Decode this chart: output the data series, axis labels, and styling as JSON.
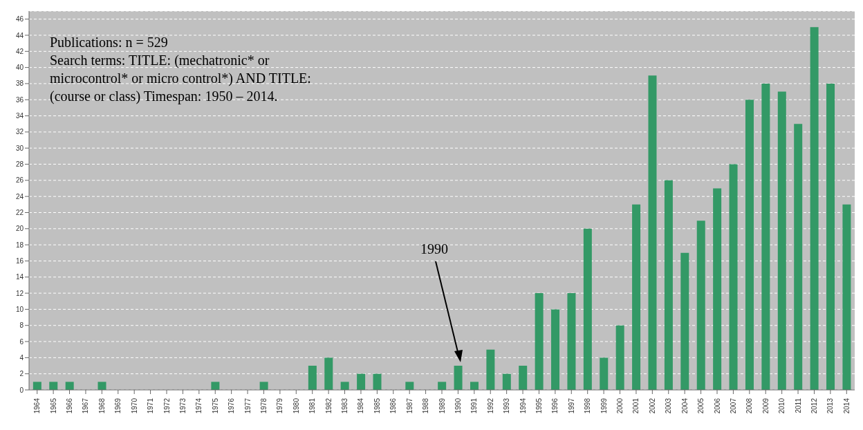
{
  "chart_data": {
    "type": "bar",
    "categories": [
      "1964",
      "1965",
      "1966",
      "1967",
      "1968",
      "1969",
      "1970",
      "1971",
      "1972",
      "1973",
      "1974",
      "1975",
      "1976",
      "1977",
      "1978",
      "1979",
      "1980",
      "1981",
      "1982",
      "1983",
      "1984",
      "1985",
      "1986",
      "1987",
      "1988",
      "1989",
      "1990",
      "1991",
      "1992",
      "1993",
      "1994",
      "1995",
      "1996",
      "1997",
      "1998",
      "1999",
      "2000",
      "2001",
      "2002",
      "2003",
      "2004",
      "2005",
      "2006",
      "2007",
      "2008",
      "2009",
      "2010",
      "2011",
      "2012",
      "2013",
      "2014"
    ],
    "values": [
      1,
      1,
      1,
      0,
      1,
      0,
      0,
      0,
      0,
      0,
      0,
      1,
      0,
      0,
      1,
      0,
      0,
      3,
      4,
      1,
      2,
      2,
      0,
      1,
      0,
      1,
      3,
      1,
      5,
      2,
      3,
      12,
      10,
      12,
      20,
      4,
      8,
      23,
      39,
      26,
      17,
      21,
      25,
      28,
      36,
      38,
      37,
      33,
      45,
      38,
      23
    ],
    "color": "#339966",
    "ylim": [
      0,
      47
    ],
    "yticks": [
      0,
      2,
      4,
      6,
      8,
      10,
      12,
      14,
      16,
      18,
      20,
      22,
      24,
      26,
      28,
      30,
      32,
      34,
      36,
      38,
      40,
      42,
      44,
      46
    ],
    "grid": "y",
    "annotations": [
      "Publications: n = 529\nSearch terms: TITLE: (mechatronic* or\nmicrocontrol* or micro control*) AND TITLE:\n(course or class) Timespan: 1950 – 2014.",
      "1990"
    ]
  }
}
